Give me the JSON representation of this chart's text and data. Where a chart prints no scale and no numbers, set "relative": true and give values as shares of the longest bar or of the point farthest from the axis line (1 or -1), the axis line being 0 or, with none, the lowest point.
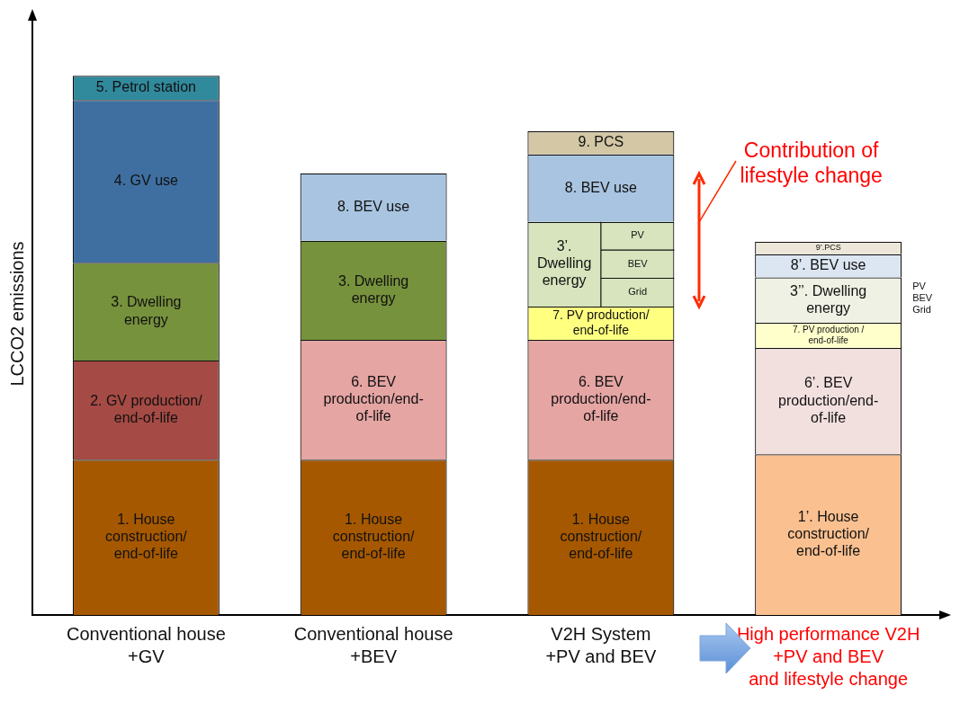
{
  "chart_data": {
    "type": "bar",
    "stacked": true,
    "relative": true,
    "ylabel": "LCCO2 emissions",
    "categories": [
      "Conventional house\n+GV",
      "Conventional house\n+BEV",
      "V2H System\n+PV and BEV",
      "High performance V2H\n+PV and BEV\nand lifestyle change"
    ],
    "series": [
      {
        "name": "1. House\nconstruction/\nend-of-life",
        "color": "#a65800",
        "values": [
          0.288,
          0.288,
          0.288,
          null
        ]
      },
      {
        "name": "2. GV production/\nend-of-life",
        "color": "#a54a44",
        "values": [
          0.184,
          null,
          null,
          null
        ]
      },
      {
        "name": "6. BEV\nproduction/end-\nof-life",
        "color": "#e5a5a3",
        "values": [
          null,
          0.222,
          0.222,
          null
        ]
      },
      {
        "name": "3. Dwelling\nenergy",
        "color": "#77923c",
        "values": [
          0.181,
          0.184,
          null,
          null
        ]
      },
      {
        "name": "7. PV production/\nend-of-life",
        "color": "#ffff80",
        "values": [
          null,
          null,
          0.062,
          null
        ]
      },
      {
        "name": "3’.\nDwelling\nenergy",
        "color": "#d7e4bd",
        "values": [
          null,
          null,
          0.157,
          null
        ]
      },
      {
        "name": "4. GV use",
        "color": "#3f6fa0",
        "values": [
          0.302,
          null,
          null,
          null
        ]
      },
      {
        "name": "8. BEV use",
        "color": "#a8c4e0",
        "values": [
          null,
          0.125,
          0.125,
          null
        ]
      },
      {
        "name": "5. Petrol station",
        "color": "#31899c",
        "values": [
          0.045,
          null,
          null,
          null
        ]
      },
      {
        "name": "9. PCS",
        "color": "#d3c7a5",
        "values": [
          null,
          null,
          0.043,
          null
        ]
      },
      {
        "name": "1’. House\nconstruction/\nend-of-life",
        "color": "#fac090",
        "values": [
          null,
          null,
          null,
          0.298
        ]
      },
      {
        "name": "6’. BEV\nproduction/end-\nof-life",
        "color": "#f2e0df",
        "values": [
          null,
          null,
          null,
          0.197
        ]
      },
      {
        "name": "7. PV production /\nend-of-life",
        "color": "#ffffcc",
        "values": [
          null,
          null,
          null,
          0.047
        ]
      },
      {
        "name": "3’’. Dwelling\nenergy",
        "color": "#eef1e3",
        "values": [
          null,
          null,
          null,
          0.084
        ]
      },
      {
        "name": "8’. BEV use",
        "color": "#dce6f2",
        "values": [
          null,
          null,
          null,
          0.043
        ]
      },
      {
        "name": "9’.PCS",
        "color": "#ece7d8",
        "values": [
          null,
          null,
          null,
          0.023
        ]
      }
    ],
    "annotations": [
      "Contribution of\nlifestyle change",
      "PV",
      "BEV",
      "Grid",
      "PV",
      "BEV",
      "Grid"
    ],
    "legend": false,
    "grid": false
  }
}
